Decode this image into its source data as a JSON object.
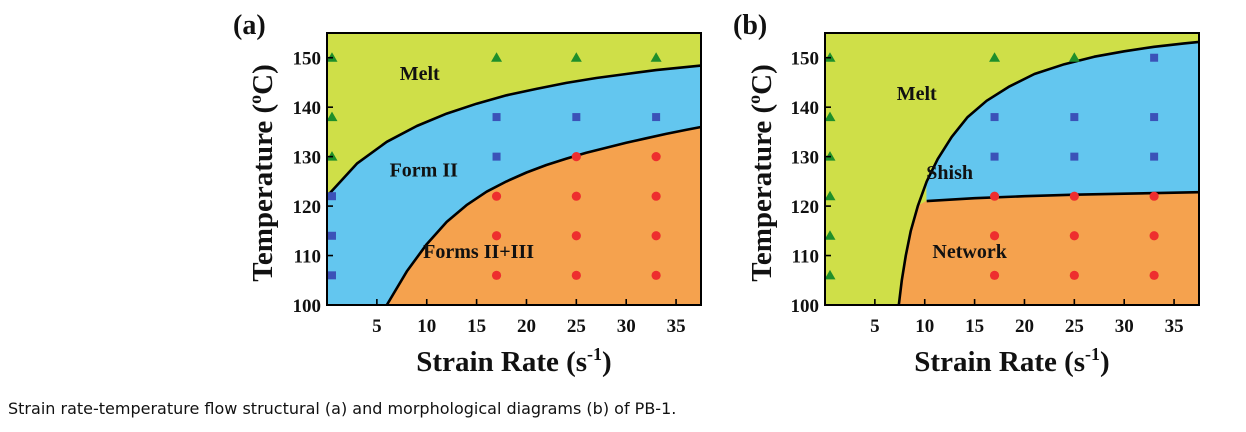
{
  "caption": "Strain rate-temperature flow structural (a) and morphological diagrams (b) of PB-1.",
  "chart_data": [
    {
      "type": "scatter",
      "panel_label": "(a)",
      "xlabel": "Strain Rate (s",
      "xlabel_sup": "-1",
      "xlabel_end": ")",
      "ylabel": "Temperature (",
      "ylabel_sup": "o",
      "ylabel_end": "C)",
      "xlim": [
        0,
        37.5
      ],
      "ylim": [
        100,
        155
      ],
      "xticks": [
        5,
        10,
        15,
        20,
        25,
        30,
        35
      ],
      "yticks": [
        100,
        110,
        120,
        130,
        140,
        150
      ],
      "colors": {
        "melt": "#cfdf48",
        "middle": "#63c6ef",
        "lower": "#f5a24e",
        "triangle": "#1f8f2a",
        "square": "#3b52b8",
        "circle": "#ee2e2e"
      },
      "regions": [
        {
          "name": "Melt",
          "label": "Melt",
          "label_pos": [
            9.3,
            145.5
          ]
        },
        {
          "name": "Form II",
          "label": "Form II",
          "label_pos": [
            9.7,
            126
          ]
        },
        {
          "name": "Forms II+III",
          "label": "Forms II+III",
          "label_pos": [
            15.2,
            109.5
          ]
        }
      ],
      "boundaries": [
        {
          "name": "upper",
          "x": [
            0,
            3,
            6,
            9,
            12,
            15,
            18,
            21,
            24,
            27,
            30,
            33,
            36,
            37.5
          ],
          "y": [
            122,
            128.6,
            133,
            136.2,
            138.7,
            140.7,
            142.4,
            143.7,
            144.9,
            145.9,
            146.7,
            147.5,
            148.1,
            148.4
          ]
        },
        {
          "name": "lower",
          "x": [
            6,
            8,
            10,
            12,
            14,
            16,
            18,
            20,
            22,
            24,
            26,
            28,
            30,
            32,
            34,
            36,
            37.5
          ],
          "y": [
            100,
            106.8,
            112.3,
            116.8,
            120.2,
            122.9,
            125,
            126.8,
            128.3,
            129.6,
            130.8,
            131.8,
            132.8,
            133.7,
            134.6,
            135.4,
            136
          ]
        }
      ],
      "series": [
        {
          "marker": "triangle",
          "points": [
            [
              0.5,
              150
            ],
            [
              0.5,
              138
            ],
            [
              0.5,
              130
            ],
            [
              17,
              150
            ],
            [
              25,
              150
            ],
            [
              33,
              150
            ]
          ]
        },
        {
          "marker": "square",
          "points": [
            [
              0.5,
              122
            ],
            [
              0.5,
              114
            ],
            [
              0.5,
              106
            ],
            [
              17,
              138
            ],
            [
              17,
              130
            ],
            [
              25,
              138
            ],
            [
              33,
              138
            ]
          ]
        },
        {
          "marker": "circle",
          "points": [
            [
              17,
              122
            ],
            [
              17,
              114
            ],
            [
              17,
              106
            ],
            [
              25,
              130
            ],
            [
              25,
              122
            ],
            [
              25,
              114
            ],
            [
              25,
              106
            ],
            [
              33,
              130
            ],
            [
              33,
              122
            ],
            [
              33,
              114
            ],
            [
              33,
              106
            ]
          ]
        }
      ]
    },
    {
      "type": "scatter",
      "panel_label": "(b)",
      "xlabel": "Strain Rate (s",
      "xlabel_sup": "-1",
      "xlabel_end": ")",
      "ylabel": "Temperature (",
      "ylabel_sup": "o",
      "ylabel_end": "C)",
      "xlim": [
        0,
        37.5
      ],
      "ylim": [
        100,
        155
      ],
      "xticks": [
        5,
        10,
        15,
        20,
        25,
        30,
        35
      ],
      "yticks": [
        100,
        110,
        120,
        130,
        140,
        150
      ],
      "colors": {
        "melt": "#cfdf48",
        "middle": "#63c6ef",
        "lower": "#f5a24e",
        "triangle": "#1f8f2a",
        "square": "#3b52b8",
        "circle": "#ee2e2e"
      },
      "regions": [
        {
          "name": "Melt",
          "label": "Melt",
          "label_pos": [
            9.2,
            141.5
          ]
        },
        {
          "name": "Shish",
          "label": "Shish",
          "label_pos": [
            12.5,
            125.5
          ]
        },
        {
          "name": "Network",
          "label": "Network",
          "label_pos": [
            14.5,
            109.5
          ]
        }
      ],
      "boundaries": [
        {
          "name": "melt",
          "x": [
            7.4,
            7.7,
            8.1,
            8.6,
            9.3,
            10.2,
            11.3,
            12.7,
            14.3,
            16.2,
            18.5,
            21,
            24,
            27,
            30,
            33,
            36,
            37.5
          ],
          "y": [
            100,
            105,
            110,
            115,
            120,
            125,
            129.5,
            134,
            138,
            141.3,
            144.2,
            146.7,
            148.7,
            150.2,
            151.3,
            152.2,
            152.9,
            153.2
          ]
        },
        {
          "name": "shish-network",
          "x": [
            10.2,
            15,
            20,
            25,
            30,
            35,
            37.5
          ],
          "y": [
            121,
            121.6,
            122,
            122.3,
            122.5,
            122.7,
            122.8
          ]
        }
      ],
      "series": [
        {
          "marker": "triangle",
          "points": [
            [
              0.5,
              150
            ],
            [
              0.5,
              138
            ],
            [
              0.5,
              130
            ],
            [
              0.5,
              122
            ],
            [
              0.5,
              114
            ],
            [
              0.5,
              106
            ],
            [
              17,
              150
            ],
            [
              25,
              150
            ]
          ]
        },
        {
          "marker": "square",
          "points": [
            [
              17,
              138
            ],
            [
              17,
              130
            ],
            [
              25,
              138
            ],
            [
              25,
              130
            ],
            [
              33,
              150
            ],
            [
              33,
              138
            ],
            [
              33,
              130
            ]
          ]
        },
        {
          "marker": "circle",
          "points": [
            [
              17,
              122
            ],
            [
              17,
              114
            ],
            [
              17,
              106
            ],
            [
              25,
              122
            ],
            [
              25,
              114
            ],
            [
              25,
              106
            ],
            [
              33,
              122
            ],
            [
              33,
              114
            ],
            [
              33,
              106
            ]
          ]
        }
      ]
    }
  ]
}
